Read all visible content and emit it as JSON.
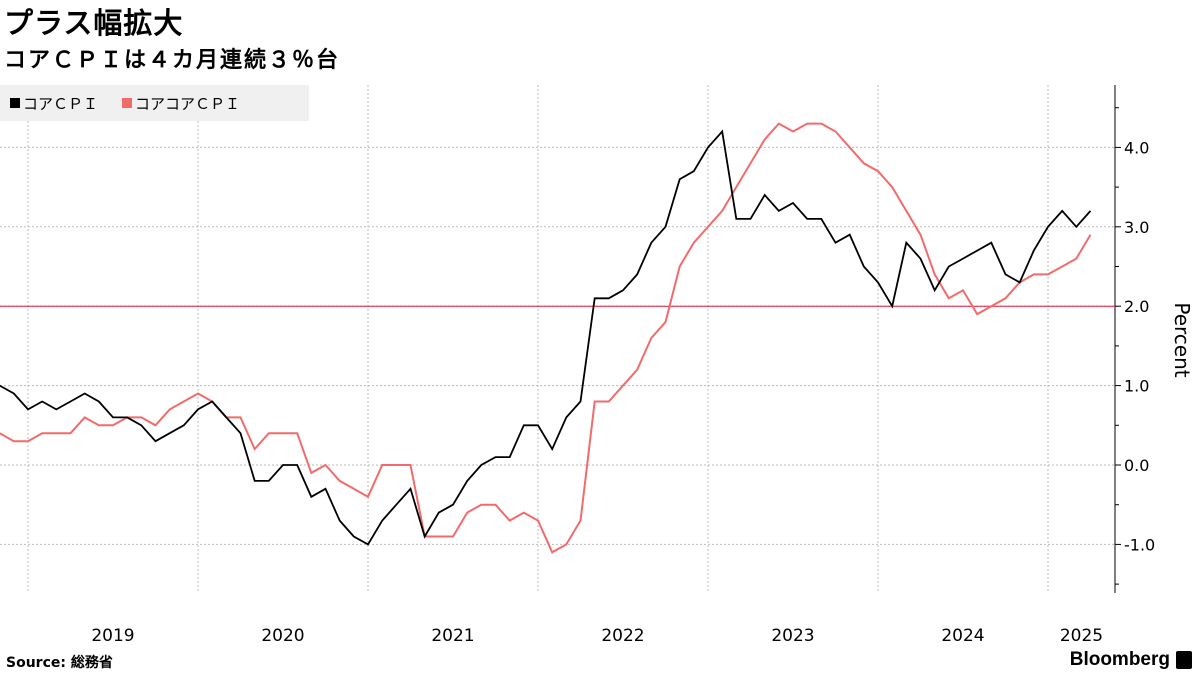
{
  "header": {
    "title": "プラス幅拡大",
    "subtitle": "コアＣＰＩは４カ月連続３％台"
  },
  "footer": {
    "source": "Source: 総務省",
    "logo": "Bloomberg"
  },
  "colors": {
    "core_cpi": "#000000",
    "core_core_cpi": "#f26b6b",
    "reference_line": "#e0193b",
    "grid": "#bbbbbb"
  },
  "chart_data": {
    "type": "line",
    "title": "プラス幅拡大",
    "subtitle": "コアＣＰＩは４カ月連続３％台",
    "ylabel": "Percent",
    "xlabel": "",
    "ylim": [
      -1.6,
      4.8
    ],
    "yticks": [
      "4.0",
      "3.0",
      "2.0",
      "1.0",
      "0.0",
      "-1.0"
    ],
    "ytick_values": [
      4,
      3,
      2,
      1,
      0,
      -1
    ],
    "xtick_labels": [
      "2019",
      "2020",
      "2021",
      "2022",
      "2023",
      "2024",
      "2025"
    ],
    "grid": true,
    "legend_placement": "top-left",
    "reference_line": 2.0,
    "x": [
      "2018-11",
      "2018-12",
      "2019-01",
      "2019-02",
      "2019-03",
      "2019-04",
      "2019-05",
      "2019-06",
      "2019-07",
      "2019-08",
      "2019-09",
      "2019-10",
      "2019-11",
      "2019-12",
      "2020-01",
      "2020-02",
      "2020-03",
      "2020-04",
      "2020-05",
      "2020-06",
      "2020-07",
      "2020-08",
      "2020-09",
      "2020-10",
      "2020-11",
      "2020-12",
      "2021-01",
      "2021-02",
      "2021-03",
      "2021-04",
      "2021-05",
      "2021-06",
      "2021-07",
      "2021-08",
      "2021-09",
      "2021-10",
      "2021-11",
      "2021-12",
      "2022-01",
      "2022-02",
      "2022-03",
      "2022-04",
      "2022-05",
      "2022-06",
      "2022-07",
      "2022-08",
      "2022-09",
      "2022-10",
      "2022-11",
      "2022-12",
      "2023-01",
      "2023-02",
      "2023-03",
      "2023-04",
      "2023-05",
      "2023-06",
      "2023-07",
      "2023-08",
      "2023-09",
      "2023-10",
      "2023-11",
      "2023-12",
      "2024-01",
      "2024-02",
      "2024-03",
      "2024-04",
      "2024-05",
      "2024-06",
      "2024-07",
      "2024-08",
      "2024-09",
      "2024-10",
      "2024-11",
      "2024-12",
      "2025-01",
      "2025-02",
      "2025-03",
      "2025-04"
    ],
    "series": [
      {
        "name": "コアＣＰＩ",
        "color": "#000000",
        "values": [
          1.0,
          0.9,
          0.7,
          0.8,
          0.7,
          0.8,
          0.9,
          0.8,
          0.6,
          0.6,
          0.5,
          0.3,
          0.4,
          0.5,
          0.7,
          0.8,
          0.6,
          0.4,
          -0.2,
          -0.2,
          0.0,
          0.0,
          -0.4,
          -0.3,
          -0.7,
          -0.9,
          -1.0,
          -0.7,
          -0.5,
          -0.3,
          -0.9,
          -0.6,
          -0.5,
          -0.2,
          0.0,
          0.1,
          0.1,
          0.5,
          0.5,
          0.2,
          0.6,
          0.8,
          2.1,
          2.1,
          2.2,
          2.4,
          2.8,
          3.0,
          3.6,
          3.7,
          4.0,
          4.2,
          3.1,
          3.1,
          3.4,
          3.2,
          3.3,
          3.1,
          3.1,
          2.8,
          2.9,
          2.5,
          2.3,
          2.0,
          2.8,
          2.6,
          2.2,
          2.5,
          2.6,
          2.7,
          2.8,
          2.4,
          2.3,
          2.7,
          3.0,
          3.2,
          3.0,
          3.2
        ]
      },
      {
        "name": "コアコアＣＰＩ",
        "color": "#f26b6b",
        "values": [
          0.4,
          0.3,
          0.3,
          0.4,
          0.4,
          0.4,
          0.6,
          0.5,
          0.5,
          0.6,
          0.6,
          0.5,
          0.7,
          0.8,
          0.9,
          0.8,
          0.6,
          0.6,
          0.2,
          0.4,
          0.4,
          0.4,
          -0.1,
          0.0,
          -0.2,
          -0.3,
          -0.4,
          0.0,
          0.0,
          0.0,
          -0.9,
          -0.9,
          -0.9,
          -0.6,
          -0.5,
          -0.5,
          -0.7,
          -0.6,
          -0.7,
          -1.1,
          -1.0,
          -0.7,
          0.8,
          0.8,
          1.0,
          1.2,
          1.6,
          1.8,
          2.5,
          2.8,
          3.0,
          3.2,
          3.5,
          3.8,
          4.1,
          4.3,
          4.2,
          4.3,
          4.3,
          4.2,
          4.0,
          3.8,
          3.7,
          3.5,
          3.2,
          2.9,
          2.4,
          2.1,
          2.2,
          1.9,
          2.0,
          2.1,
          2.3,
          2.4,
          2.4,
          2.5,
          2.6,
          2.9
        ]
      }
    ]
  }
}
